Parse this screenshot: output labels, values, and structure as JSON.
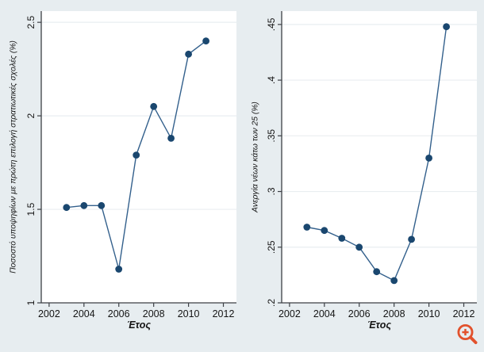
{
  "theme": {
    "background": "#e7edf0",
    "plot_background": "#ffffff",
    "grid_color": "#e9eef0",
    "axis_color": "#3d4045",
    "text_color": "#141414",
    "marker_color": "#1a476f",
    "line_color": "#33608c",
    "zoom_icon_color": "#e2512c"
  },
  "zoom_control": {
    "name": "zoom-in"
  },
  "chart_data": [
    {
      "type": "line",
      "title": "",
      "xlabel": "Έτος",
      "ylabel": "Ποσοστό υποψηφίων με πρώτη επιλογή στρατιωτικές σχολές (%)",
      "x": [
        2003,
        2004,
        2005,
        2006,
        2007,
        2008,
        2009,
        2010,
        2011
      ],
      "values": [
        1.51,
        1.52,
        1.52,
        1.18,
        1.79,
        2.05,
        1.88,
        2.33,
        2.4
      ],
      "xtick_values": [
        2002,
        2004,
        2006,
        2008,
        2010,
        2012
      ],
      "xtick_labels": [
        "2002",
        "2004",
        "2006",
        "2008",
        "2010",
        "2012"
      ],
      "ytick_values": [
        1,
        1.5,
        2,
        2.5
      ],
      "ytick_labels": [
        "1",
        "1.5",
        "2",
        "2.5"
      ],
      "xlim": [
        2001.55,
        2012.75
      ],
      "ylim": [
        1,
        2.56
      ],
      "grid": "horizontal",
      "legend": "none",
      "marker": "circle"
    },
    {
      "type": "line",
      "title": "",
      "xlabel": "Έτος",
      "ylabel": "Ανεργία νέων κάτω των 25 (%)",
      "x": [
        2003,
        2004,
        2005,
        2006,
        2007,
        2008,
        2009,
        2010,
        2011
      ],
      "values": [
        0.268,
        0.265,
        0.258,
        0.25,
        0.228,
        0.22,
        0.257,
        0.33,
        0.448
      ],
      "xtick_values": [
        2002,
        2004,
        2006,
        2008,
        2010,
        2012
      ],
      "xtick_labels": [
        "2002",
        "2004",
        "2006",
        "2008",
        "2010",
        "2012"
      ],
      "ytick_values": [
        0.2,
        0.25,
        0.3,
        0.35,
        0.4,
        0.45
      ],
      "ytick_labels": [
        ".2",
        ".25",
        ".3",
        ".35",
        ".4",
        ".45"
      ],
      "xlim": [
        2001.55,
        2012.75
      ],
      "ylim": [
        0.2,
        0.462
      ],
      "grid": "horizontal",
      "legend": "none",
      "marker": "circle"
    }
  ]
}
